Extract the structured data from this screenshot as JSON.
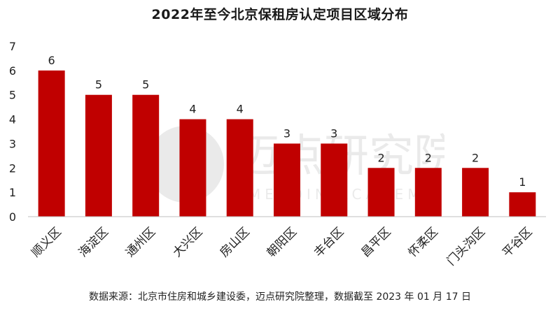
{
  "chart_data": {
    "type": "bar",
    "title": "2022年至今北京保租房认定项目区域分布",
    "categories": [
      "顺义区",
      "海淀区",
      "通州区",
      "大兴区",
      "房山区",
      "朝阳区",
      "丰台区",
      "昌平区",
      "怀柔区",
      "门头沟区",
      "平谷区"
    ],
    "values": [
      6,
      5,
      5,
      4,
      4,
      3,
      3,
      2,
      2,
      2,
      1
    ],
    "data_labels": [
      "6",
      "5",
      "5",
      "4",
      "4",
      "3",
      "3",
      "2",
      "2",
      "2",
      "1"
    ],
    "yticks": [
      "0",
      "1",
      "2",
      "3",
      "4",
      "5",
      "6",
      "7"
    ],
    "ylim": [
      0,
      7
    ],
    "xlabel": "",
    "ylabel": "",
    "grid": false,
    "legend": "none",
    "bar_color": "#c00000"
  },
  "source_note": "数据来源：北京市住房和城乡建设委，迈点研究院整理，数据截至 2023 年 01 月 17 日",
  "watermark": {
    "text": "迈点研究院",
    "subtext": "MEADIN ACADEMY"
  }
}
